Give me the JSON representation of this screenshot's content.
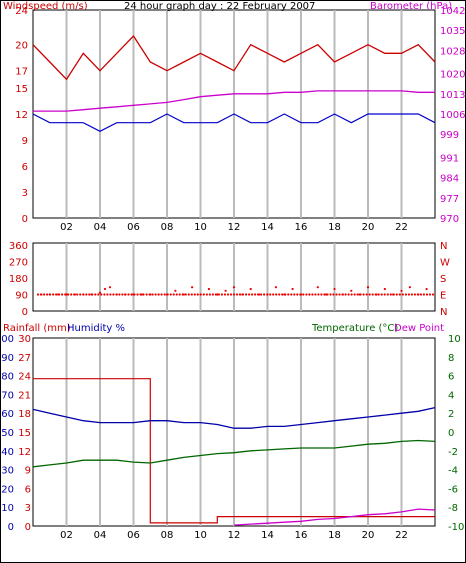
{
  "colors": {
    "wind": "#cc0000",
    "gust": "#ee0000",
    "wind_avg": "#0000cc",
    "baro": "#cc00cc",
    "dir": "#ee0000",
    "rain": "#cc0000",
    "humidity": "#0000aa",
    "temp": "#006600",
    "dew": "#cc00cc",
    "grid": "#bbbbbb"
  },
  "x_ticks": [
    "02",
    "04",
    "06",
    "08",
    "10",
    "12",
    "14",
    "16",
    "18",
    "20",
    "22"
  ],
  "chart_data": [
    {
      "type": "line",
      "title": "24 hour graph day : 22 February 2007",
      "ylabel": "Windspeed (m/s)",
      "y2label": "Barometer (hPa)",
      "ylim": [
        0,
        24
      ],
      "y_ticks": [
        "0",
        "3",
        "6",
        "9",
        "12",
        "15",
        "17",
        "20",
        "24"
      ],
      "y2lim": [
        970,
        1042
      ],
      "y2_ticks": [
        "970",
        "977",
        "984",
        "991",
        "999",
        "1006",
        "1013",
        "1020",
        "1028",
        "1035",
        "1042"
      ],
      "x": [
        0,
        1,
        2,
        3,
        4,
        5,
        6,
        7,
        8,
        9,
        10,
        11,
        12,
        13,
        14,
        15,
        16,
        17,
        18,
        19,
        20,
        21,
        22,
        23,
        24
      ],
      "series": [
        {
          "name": "Windspeed (m/s)",
          "axis": "left",
          "values": [
            20,
            18,
            16,
            19,
            17,
            19,
            21,
            18,
            17,
            18,
            19,
            18,
            17,
            20,
            19,
            18,
            19,
            20,
            18,
            19,
            20,
            19,
            19,
            20,
            18
          ]
        },
        {
          "name": "Wind average",
          "axis": "left",
          "values": [
            12,
            11,
            11,
            11,
            10,
            11,
            11,
            11,
            12,
            11,
            11,
            11,
            12,
            11,
            11,
            12,
            11,
            11,
            12,
            11,
            12,
            12,
            12,
            12,
            11
          ]
        },
        {
          "name": "Barometer (hPa)",
          "axis": "right",
          "values": [
            1007,
            1007,
            1007,
            1007.5,
            1008,
            1008.5,
            1009,
            1009.5,
            1010,
            1011,
            1012,
            1012.5,
            1013,
            1013,
            1013,
            1013.5,
            1013.5,
            1014,
            1014,
            1014,
            1014,
            1014,
            1014,
            1013.5,
            1013.5
          ]
        }
      ]
    },
    {
      "type": "scatter",
      "ylabel": "Wind direction",
      "ylim": [
        0,
        360
      ],
      "y_ticks": [
        "0",
        "90",
        "180",
        "270",
        "360"
      ],
      "y2_ticks": [
        "N",
        "E",
        "S",
        "W",
        "N"
      ],
      "points_x": [
        0.5,
        1.0,
        1.5,
        2.0,
        2.5,
        3.0,
        3.5,
        4.0,
        4.3,
        4.6,
        5.0,
        5.5,
        6.0,
        6.5,
        7.0,
        7.5,
        8.0,
        8.5,
        9.0,
        9.5,
        10.0,
        10.5,
        11.0,
        11.5,
        12.0,
        12.5,
        13.0,
        13.5,
        14.0,
        14.5,
        15.0,
        15.5,
        16.0,
        16.5,
        17.0,
        17.5,
        18.0,
        18.5,
        19.0,
        19.5,
        20.0,
        20.5,
        21.0,
        21.5,
        22.0,
        22.5,
        23.0,
        23.5
      ],
      "points_y": [
        90,
        90,
        90,
        90,
        90,
        90,
        90,
        100,
        120,
        130,
        90,
        90,
        90,
        90,
        90,
        90,
        90,
        110,
        90,
        130,
        90,
        120,
        90,
        110,
        130,
        90,
        120,
        90,
        90,
        130,
        90,
        120,
        90,
        90,
        130,
        90,
        120,
        90,
        110,
        90,
        130,
        90,
        120,
        90,
        110,
        130,
        90,
        120
      ]
    },
    {
      "type": "line",
      "ylabel": "Rainfall (mm)",
      "ylabel2": "Humidity %",
      "y2label": "Temperature (°C)",
      "y3label": "Dew Point",
      "rain_ylim": [
        0,
        30
      ],
      "rain_ticks": [
        "0",
        "3",
        "6",
        "9",
        "12",
        "15",
        "18",
        "21",
        "24",
        "27",
        "30"
      ],
      "hum_ylim": [
        0,
        100
      ],
      "hum_ticks": [
        "0",
        "10",
        "20",
        "30",
        "40",
        "50",
        "60",
        "70",
        "80",
        "90",
        "100"
      ],
      "temp_ylim": [
        -10,
        10
      ],
      "temp_ticks": [
        "-10",
        "-8",
        "-6",
        "-4",
        "-2",
        "0",
        "2",
        "4",
        "6",
        "8",
        "10"
      ],
      "x": [
        0,
        1,
        2,
        3,
        4,
        5,
        6,
        7,
        8,
        9,
        10,
        11,
        12,
        13,
        14,
        15,
        16,
        17,
        18,
        19,
        20,
        21,
        22,
        23,
        24
      ],
      "series": [
        {
          "name": "Rainfall (mm)",
          "axis": "rain",
          "values": [
            23.5,
            23.5,
            23.5,
            23.5,
            23.5,
            23.5,
            23.5,
            0.5,
            0.5,
            0.5,
            0.5,
            1.5,
            1.5,
            1.5,
            1.5,
            1.5,
            1.5,
            1.5,
            1.5,
            1.5,
            1.5,
            1.5,
            1.5,
            1.5,
            1.5
          ]
        },
        {
          "name": "Humidity %",
          "axis": "hum",
          "values": [
            62,
            60,
            58,
            56,
            55,
            55,
            55,
            56,
            56,
            55,
            55,
            54,
            52,
            52,
            53,
            53,
            54,
            55,
            56,
            57,
            58,
            59,
            60,
            61,
            63
          ]
        },
        {
          "name": "Temperature (°C)",
          "axis": "temp",
          "values": [
            -3.7,
            -3.5,
            -3.3,
            -3.0,
            -3.0,
            -3.0,
            -3.2,
            -3.3,
            -3.0,
            -2.7,
            -2.5,
            -2.3,
            -2.2,
            -2.0,
            -1.9,
            -1.8,
            -1.7,
            -1.7,
            -1.7,
            -1.5,
            -1.3,
            -1.2,
            -1.0,
            -0.9,
            -1.0
          ]
        },
        {
          "name": "Dew Point",
          "axis": "temp",
          "values": [
            null,
            null,
            null,
            null,
            null,
            null,
            null,
            null,
            null,
            null,
            null,
            null,
            -9.9,
            -9.8,
            -9.7,
            -9.6,
            -9.5,
            -9.3,
            -9.2,
            -9.0,
            -8.8,
            -8.7,
            -8.5,
            -8.2,
            -8.3
          ]
        }
      ]
    }
  ]
}
